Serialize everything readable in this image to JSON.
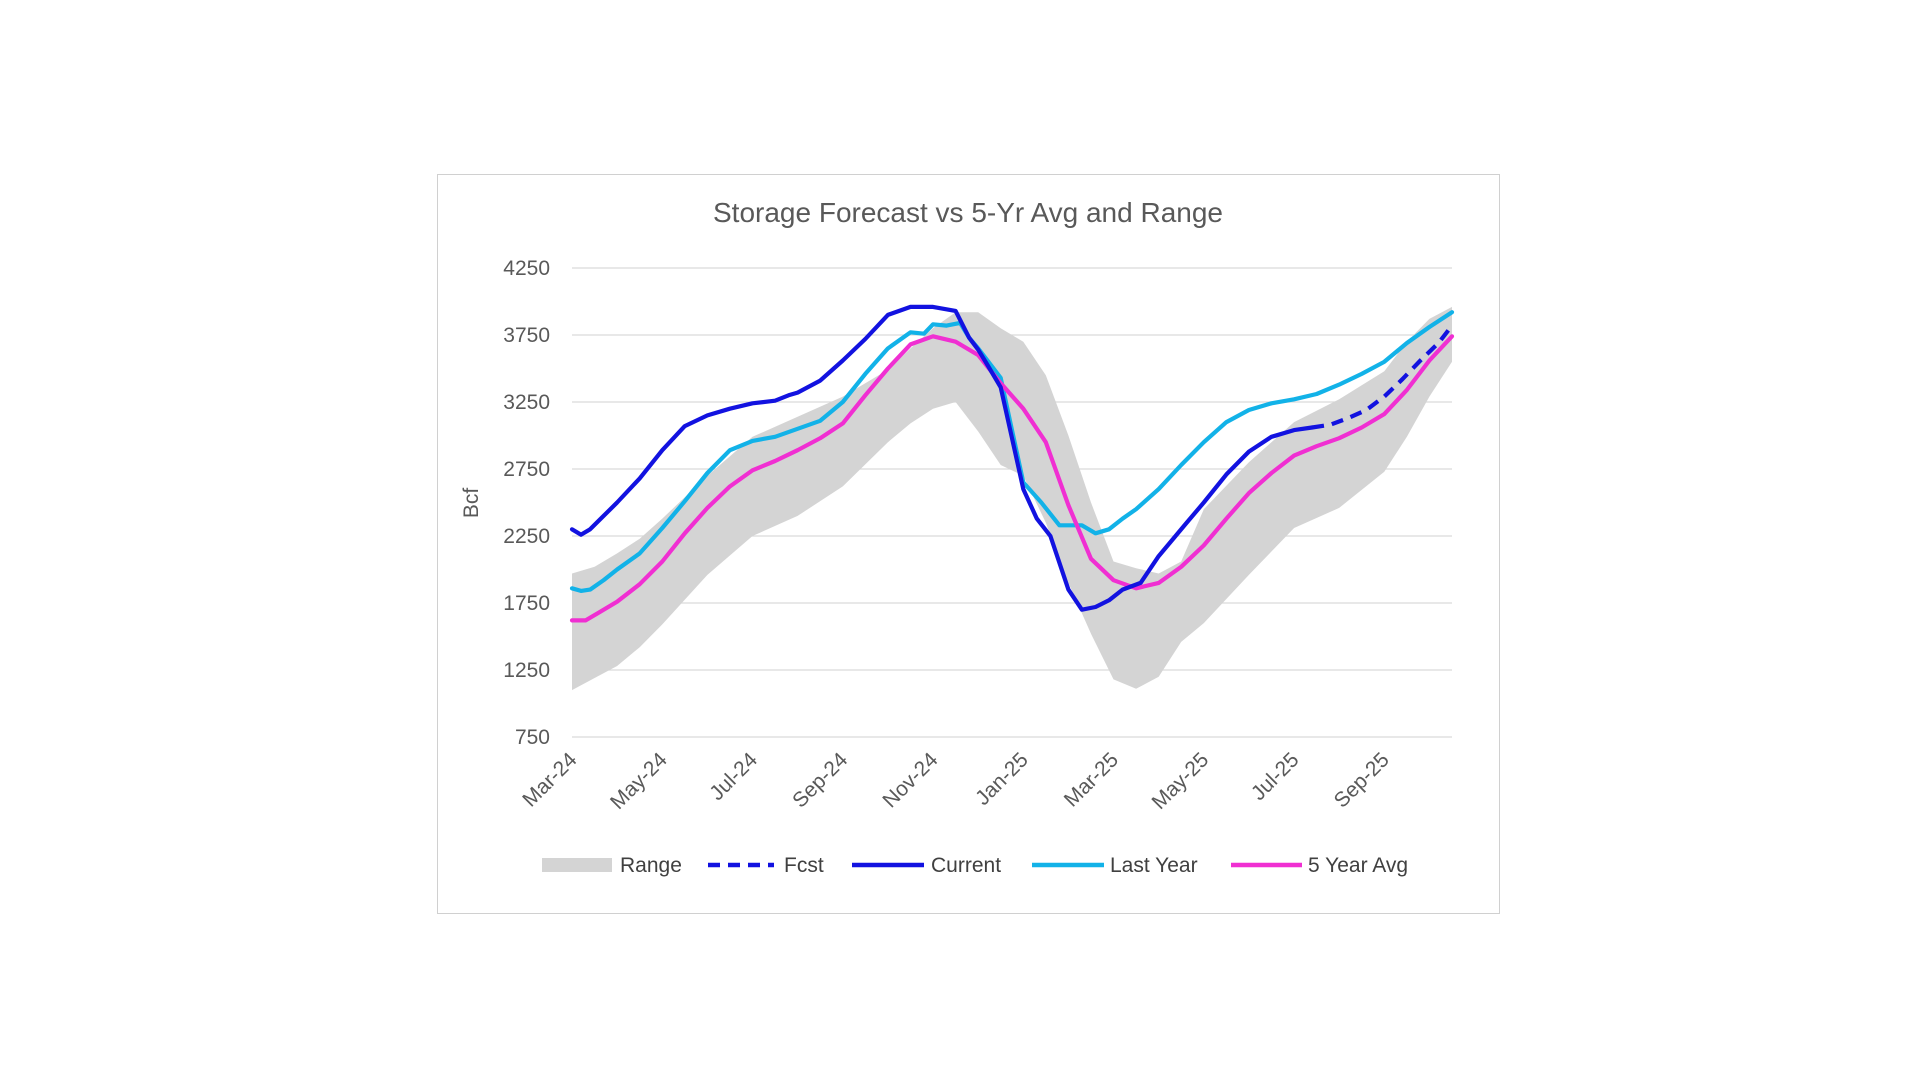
{
  "chart_data": {
    "type": "line",
    "title": "Storage Forecast vs 5-Yr Avg and Range",
    "ylabel": "Bcf",
    "xlabel": "",
    "ylim": [
      750,
      4250
    ],
    "yticks": [
      750,
      1250,
      1750,
      2250,
      2750,
      3250,
      3750,
      4250
    ],
    "xticks": [
      "Mar-24",
      "May-24",
      "Jul-24",
      "Sep-24",
      "Nov-24",
      "Jan-25",
      "Mar-25",
      "May-25",
      "Jul-25",
      "Sep-25"
    ],
    "xlim_months": [
      0,
      19.5
    ],
    "grid": "horizontal",
    "legend_position": "bottom",
    "legend": [
      "Range",
      "Fcst",
      "Current",
      "Last Year",
      "5 Year Avg"
    ],
    "colors": {
      "range": "#d4d4d4",
      "fcst": "#1212e0",
      "current": "#1212e0",
      "last_year": "#12b2e8",
      "avg5": "#f02fd2",
      "grid": "#d9d9d9"
    },
    "range": {
      "x": [
        0,
        0.5,
        1,
        1.5,
        2,
        3,
        4,
        5,
        6,
        7,
        7.5,
        8,
        8.5,
        9,
        9.5,
        10,
        10.5,
        11,
        11.5,
        12,
        12.5,
        13,
        13.5,
        14,
        15,
        16,
        17,
        18,
        18.5,
        19,
        19.5
      ],
      "high": [
        1970,
        2020,
        2120,
        2230,
        2380,
        2700,
        2990,
        3140,
        3290,
        3490,
        3650,
        3800,
        3920,
        3920,
        3800,
        3700,
        3450,
        3000,
        2500,
        2060,
        2010,
        1970,
        2060,
        2450,
        2800,
        3100,
        3270,
        3480,
        3700,
        3870,
        3960
      ],
      "low": [
        1100,
        1190,
        1280,
        1420,
        1590,
        1960,
        2250,
        2400,
        2620,
        2950,
        3090,
        3200,
        3250,
        3030,
        2780,
        2700,
        2350,
        1900,
        1520,
        1180,
        1110,
        1200,
        1460,
        1600,
        1960,
        2310,
        2460,
        2730,
        2990,
        3290,
        3550
      ]
    },
    "series": [
      {
        "name": "Current",
        "x": [
          0,
          0.2,
          0.4,
          0.7,
          1,
          1.5,
          2,
          2.5,
          3,
          3.5,
          4,
          4.5,
          4.8,
          5,
          5.5,
          6,
          6.5,
          7,
          7.5,
          8,
          8.5,
          8.8,
          9,
          9.2,
          9.5,
          10,
          10.3,
          10.6,
          11,
          11.3,
          11.6,
          11.9,
          12.2,
          12.6,
          13,
          13.3,
          13.6,
          14,
          14.5,
          15,
          15.5,
          16,
          16.4
        ],
        "values": [
          2300,
          2260,
          2300,
          2400,
          2500,
          2680,
          2890,
          3070,
          3150,
          3200,
          3240,
          3260,
          3300,
          3320,
          3410,
          3560,
          3720,
          3900,
          3960,
          3960,
          3930,
          3730,
          3640,
          3530,
          3360,
          2600,
          2380,
          2250,
          1850,
          1700,
          1720,
          1770,
          1850,
          1900,
          2100,
          2220,
          2340,
          2500,
          2710,
          2880,
          2990,
          3040,
          3060
        ]
      },
      {
        "name": "Fcst",
        "x": [
          16.4,
          16.8,
          17.2,
          17.6,
          18,
          18.4,
          18.8,
          19.2,
          19.5
        ],
        "values": [
          3060,
          3080,
          3130,
          3190,
          3290,
          3420,
          3560,
          3690,
          3820
        ]
      },
      {
        "name": "Last Year",
        "x": [
          0,
          0.2,
          0.4,
          0.7,
          1,
          1.5,
          2,
          2.5,
          3,
          3.5,
          4,
          4.5,
          5,
          5.5,
          6,
          6.5,
          7,
          7.5,
          7.8,
          8,
          8.3,
          8.6,
          8.8,
          9,
          9.5,
          10,
          10.4,
          10.8,
          11,
          11.3,
          11.6,
          11.9,
          12.2,
          12.5,
          13,
          13.5,
          14,
          14.5,
          15,
          15.5,
          16,
          16.5,
          17,
          17.5,
          18,
          18.5,
          19,
          19.5
        ],
        "values": [
          1860,
          1840,
          1850,
          1920,
          2000,
          2120,
          2310,
          2510,
          2720,
          2890,
          2960,
          2990,
          3050,
          3110,
          3250,
          3460,
          3650,
          3770,
          3760,
          3830,
          3820,
          3840,
          3730,
          3650,
          3430,
          2650,
          2500,
          2330,
          2330,
          2330,
          2270,
          2300,
          2380,
          2450,
          2600,
          2780,
          2950,
          3100,
          3190,
          3240,
          3270,
          3310,
          3380,
          3460,
          3550,
          3690,
          3810,
          3920
        ]
      },
      {
        "name": "5 Year Avg",
        "x": [
          0,
          0.3,
          0.6,
          1,
          1.5,
          2,
          2.5,
          3,
          3.5,
          4,
          4.5,
          5,
          5.5,
          6,
          6.5,
          7,
          7.5,
          8,
          8.5,
          9,
          9.5,
          10,
          10.5,
          11,
          11.5,
          12,
          12.5,
          13,
          13.5,
          14,
          14.5,
          15,
          15.5,
          16,
          16.5,
          17,
          17.5,
          18,
          18.5,
          19,
          19.5
        ],
        "values": [
          1620,
          1620,
          1680,
          1760,
          1890,
          2060,
          2270,
          2460,
          2620,
          2740,
          2810,
          2890,
          2980,
          3090,
          3300,
          3500,
          3680,
          3740,
          3700,
          3600,
          3390,
          3200,
          2950,
          2480,
          2080,
          1920,
          1860,
          1900,
          2020,
          2180,
          2380,
          2570,
          2720,
          2850,
          2920,
          2980,
          3060,
          3160,
          3340,
          3560,
          3740
        ]
      }
    ]
  }
}
